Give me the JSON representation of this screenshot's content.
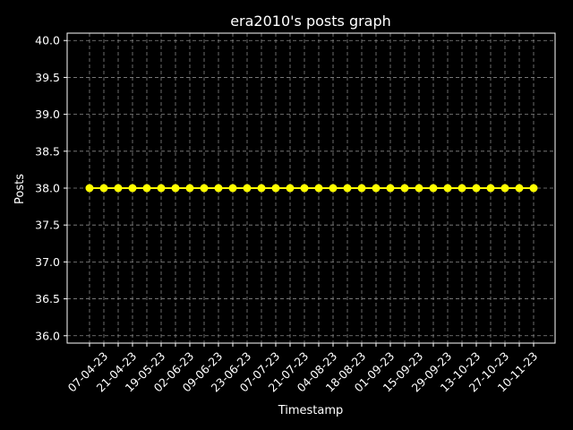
{
  "chart_data": {
    "type": "line",
    "title": "era2010's posts graph",
    "xlabel": "Timestamp",
    "ylabel": "Posts",
    "ylim": [
      35.9,
      40.1
    ],
    "yticks": [
      36.0,
      36.5,
      37.0,
      37.5,
      38.0,
      38.5,
      39.0,
      39.5,
      40.0
    ],
    "xtick_labels": [
      "07-04-23",
      "21-04-23",
      "19-05-23",
      "02-06-23",
      "09-06-23",
      "23-06-23",
      "07-07-23",
      "21-07-23",
      "04-08-23",
      "18-08-23",
      "01-09-23",
      "15-09-23",
      "29-09-23",
      "13-10-23",
      "27-10-23",
      "10-11-23"
    ],
    "grid": true,
    "colors": {
      "background": "#000000",
      "series": "#ffff00",
      "grid": "#888888",
      "text": "#ffffff"
    },
    "series": [
      {
        "values": [
          38,
          38,
          38,
          38,
          38,
          38,
          38,
          38,
          38,
          38,
          38,
          38,
          38,
          38,
          38,
          38,
          38,
          38,
          38,
          38,
          38,
          38,
          38,
          38,
          38,
          38,
          38,
          38,
          38,
          38,
          38,
          38
        ]
      }
    ]
  }
}
